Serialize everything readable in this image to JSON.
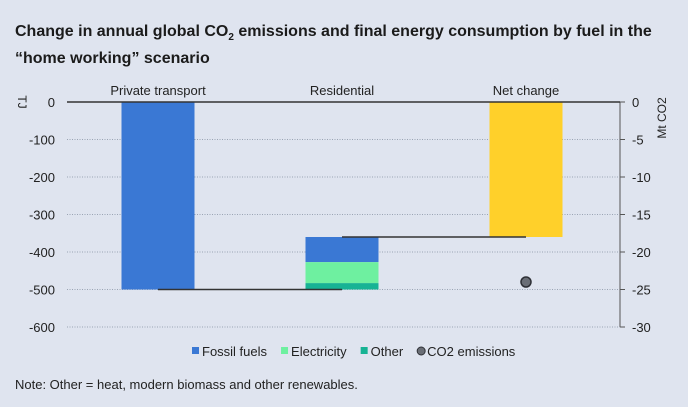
{
  "title_parts": {
    "pre": "Change in annual global CO",
    "sub": "2",
    "post": " emissions and final energy consumption by fuel in the “home working” scenario"
  },
  "note": "Note: Other = heat, modern biomass and other renewables.",
  "chart_data": {
    "type": "waterfall-bar",
    "categories": [
      "Private transport",
      "Residential",
      "Net change"
    ],
    "ylabel_left": "TJ",
    "ylabel_right": "Mt CO2",
    "ylim_left": [
      -600,
      0
    ],
    "ylim_right": [
      -30,
      0
    ],
    "yticks_left": [
      0,
      -100,
      -200,
      -300,
      -400,
      -500,
      -600
    ],
    "yticks_right": [
      0,
      -5,
      -10,
      -15,
      -20,
      -25,
      -30
    ],
    "grid": true,
    "legend_position": "bottom",
    "series": [
      {
        "name": "Fossil fuels",
        "color": "#3a78d4",
        "values": [
          -500,
          67,
          0
        ]
      },
      {
        "name": "Electricity",
        "color": "#6ef0a0",
        "values": [
          0,
          56,
          0
        ]
      },
      {
        "name": "Other",
        "color": "#17b394",
        "values": [
          0,
          17,
          0
        ]
      }
    ],
    "net_change": {
      "value": -360,
      "color": "#ffd02a"
    },
    "co2_emissions": {
      "name": "CO2 emissions",
      "category": "Net change",
      "value": -24,
      "color": "#4d5058"
    }
  }
}
